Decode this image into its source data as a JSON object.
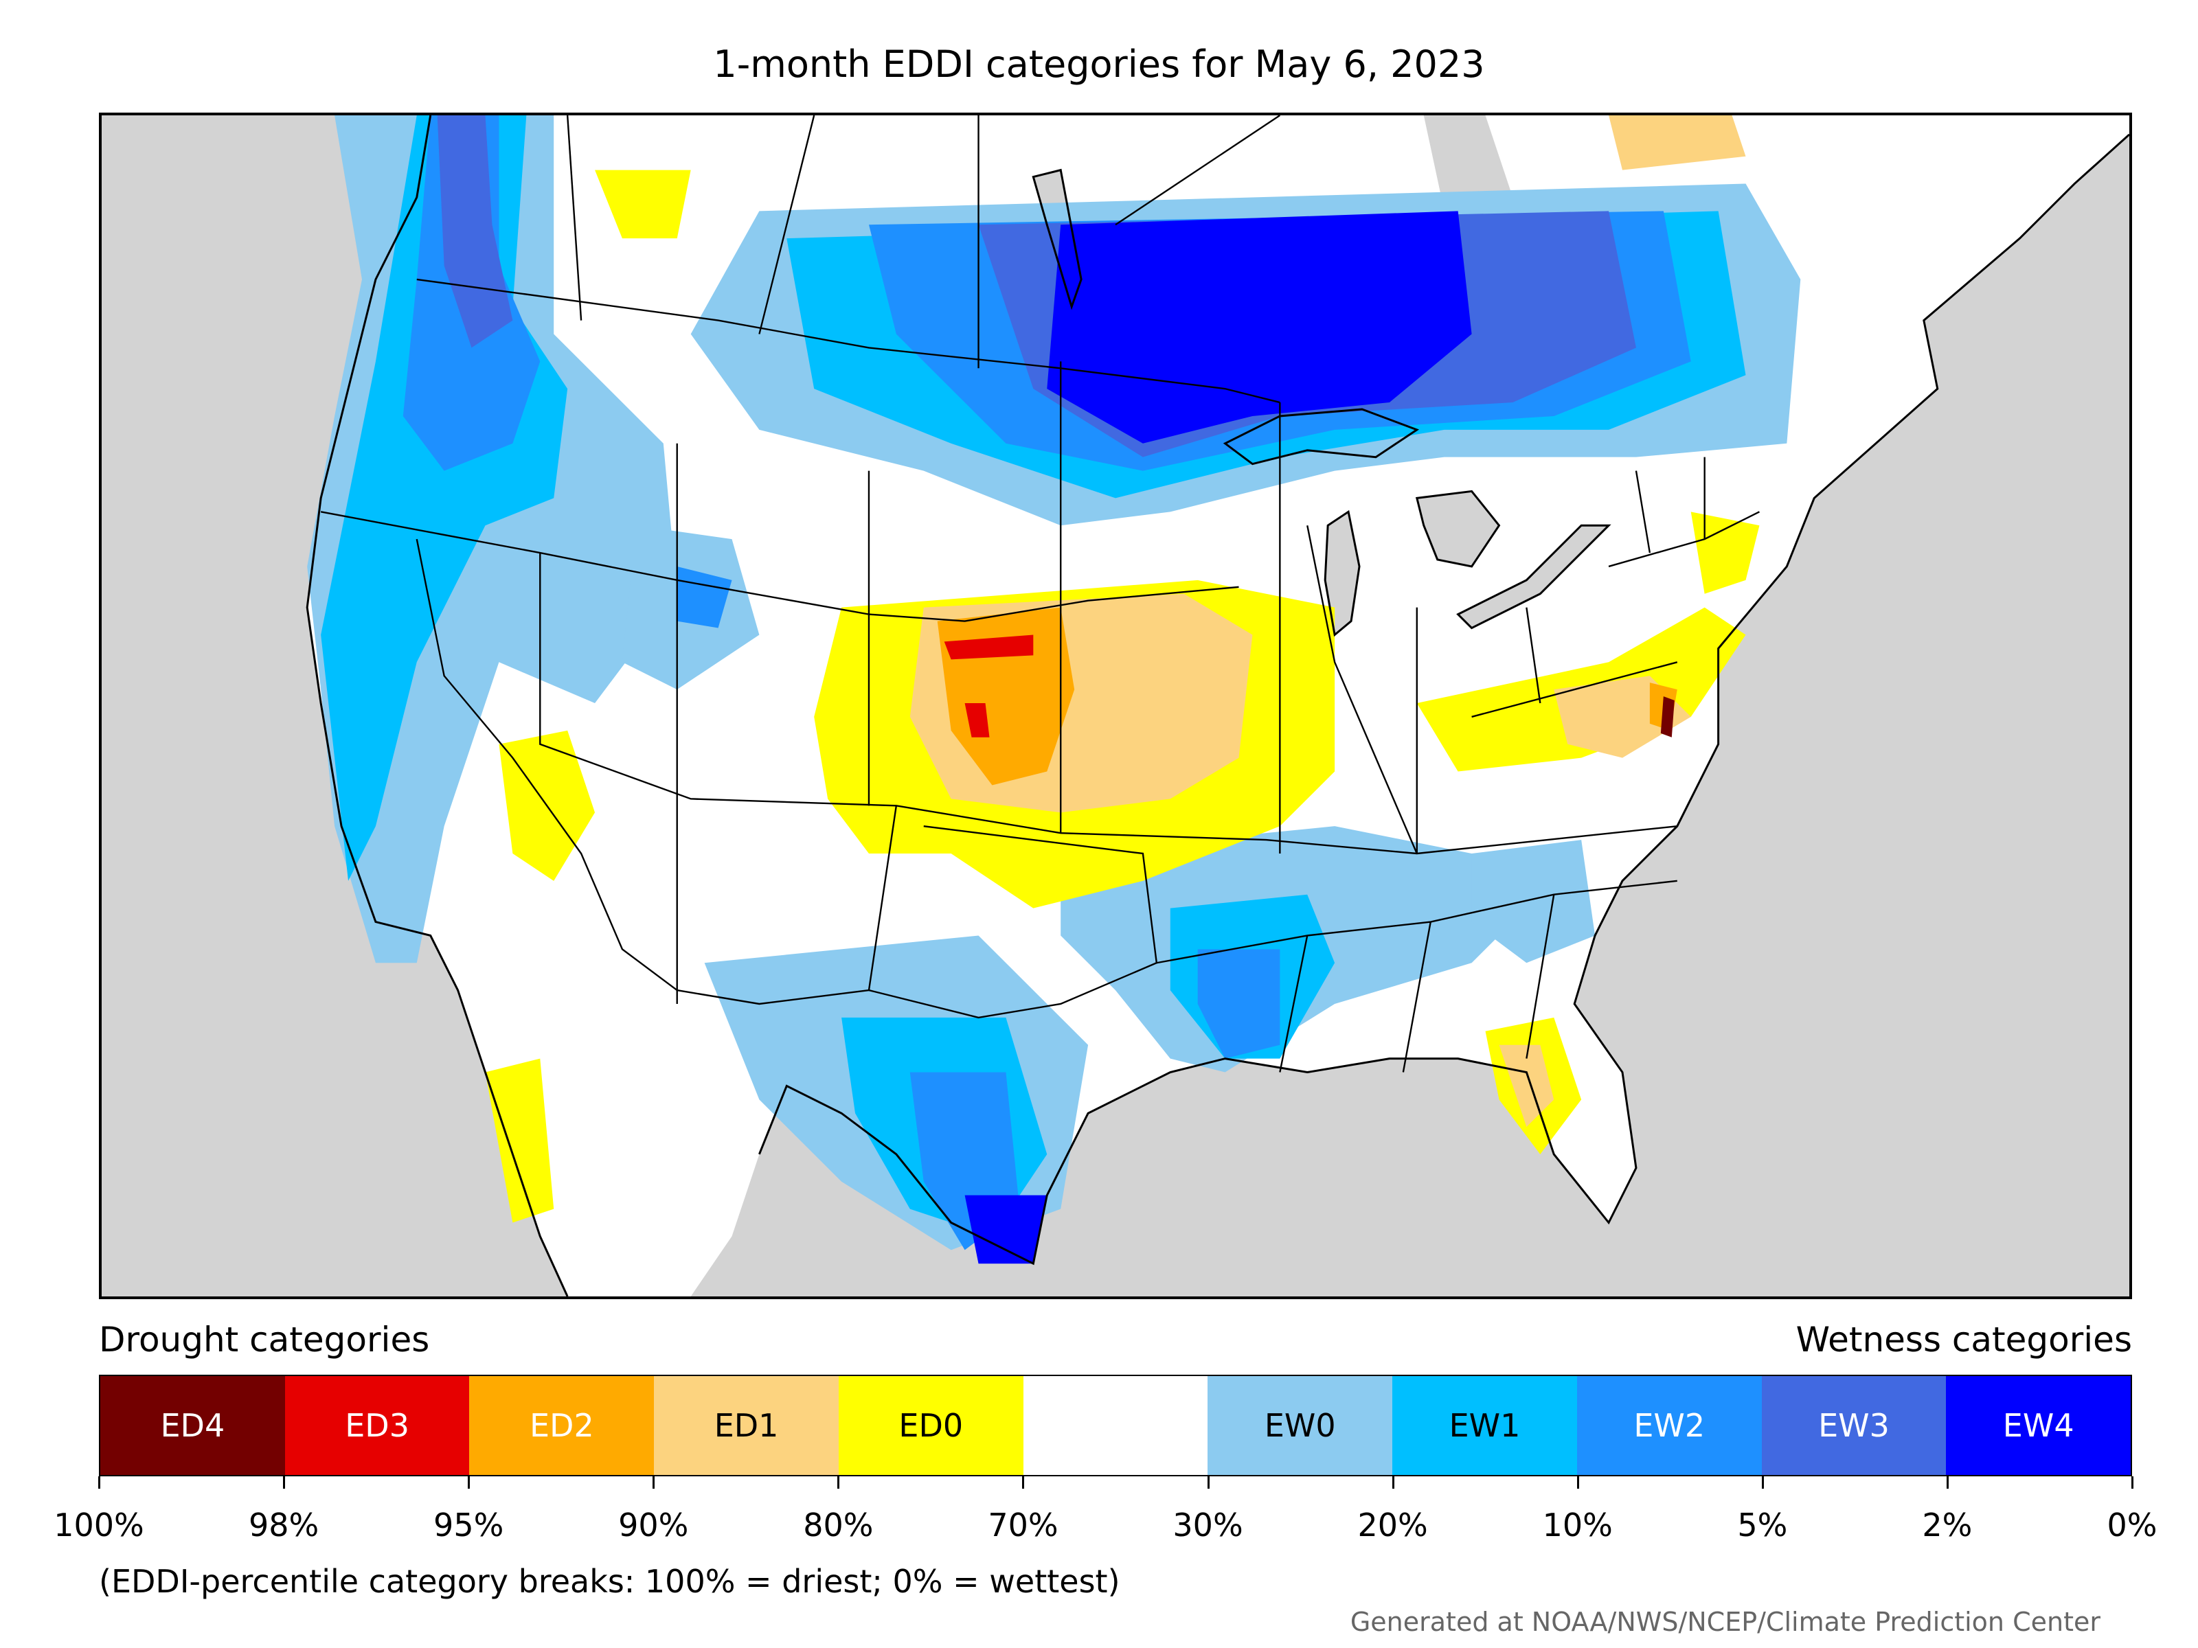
{
  "title": "1-month EDDI categories for May 6, 2023",
  "legend": {
    "drought_heading": "Drought categories",
    "wetness_heading": "Wetness categories",
    "categories": [
      {
        "label": "ED4",
        "color": "#730000",
        "text_color": "#ffffff"
      },
      {
        "label": "ED3",
        "color": "#e60000",
        "text_color": "#ffffff"
      },
      {
        "label": "ED2",
        "color": "#ffaa00",
        "text_color": "#ffffff"
      },
      {
        "label": "ED1",
        "color": "#fcd37f",
        "text_color": "#000000"
      },
      {
        "label": "ED0",
        "color": "#ffff00",
        "text_color": "#000000"
      },
      {
        "label": "",
        "color": "#ffffff",
        "text_color": "#000000"
      },
      {
        "label": "EW0",
        "color": "#8ccbf0",
        "text_color": "#000000"
      },
      {
        "label": "EW1",
        "color": "#00bfff",
        "text_color": "#000000"
      },
      {
        "label": "EW2",
        "color": "#1e90ff",
        "text_color": "#ffffff"
      },
      {
        "label": "EW3",
        "color": "#4169e1",
        "text_color": "#ffffff"
      },
      {
        "label": "EW4",
        "color": "#0000ff",
        "text_color": "#ffffff"
      }
    ],
    "breaks": [
      "100%",
      "98%",
      "95%",
      "90%",
      "80%",
      "70%",
      "30%",
      "20%",
      "10%",
      "5%",
      "2%",
      "0%"
    ]
  },
  "note": "(EDDI-percentile category breaks: 100% = driest; 0% = wettest)",
  "credit": "Generated at NOAA/NWS/NCEP/Climate Prediction Center",
  "map": {
    "background_color": "#d3d3d3",
    "land_color": "#ffffff",
    "border_color": "#000000"
  }
}
